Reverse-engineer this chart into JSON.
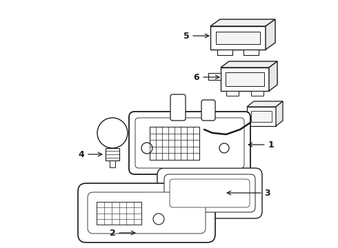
{
  "bg_color": "#ffffff",
  "line_color": "#1a1a1a",
  "label_color": "#1a1a1a",
  "lw": 1.0,
  "figsize": [
    4.9,
    3.6
  ],
  "dpi": 100
}
